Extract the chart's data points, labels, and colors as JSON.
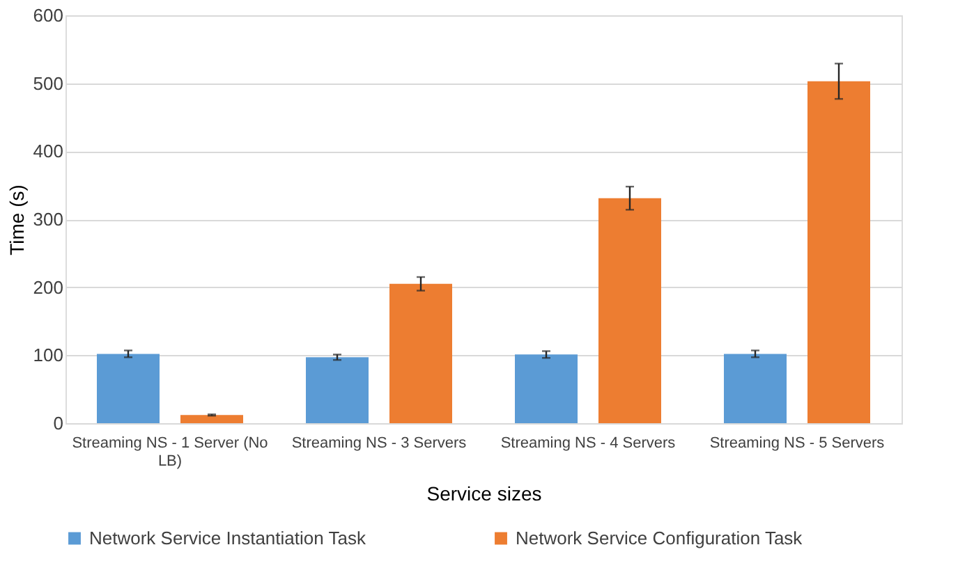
{
  "chart_data": {
    "type": "bar",
    "xlabel": "Service sizes",
    "ylabel": "Time (s)",
    "categories": [
      "Streaming NS - 1 Server (No LB)",
      "Streaming NS - 3 Servers",
      "Streaming NS - 4 Servers",
      "Streaming NS - 5 Servers"
    ],
    "series": [
      {
        "name": "Network Service Instantiation Task",
        "color": "#5b9bd5",
        "values": [
          102,
          97,
          101,
          102
        ],
        "errors": [
          5,
          4,
          5,
          5
        ]
      },
      {
        "name": "Network Service Configuration Task",
        "color": "#ed7d31",
        "values": [
          12,
          205,
          331,
          503
        ],
        "errors": [
          1,
          10,
          17,
          26
        ]
      }
    ],
    "ylim": [
      0,
      600
    ],
    "yticks": [
      0,
      100,
      200,
      300,
      400,
      500,
      600
    ],
    "grid": "y",
    "legend": "bottom"
  }
}
